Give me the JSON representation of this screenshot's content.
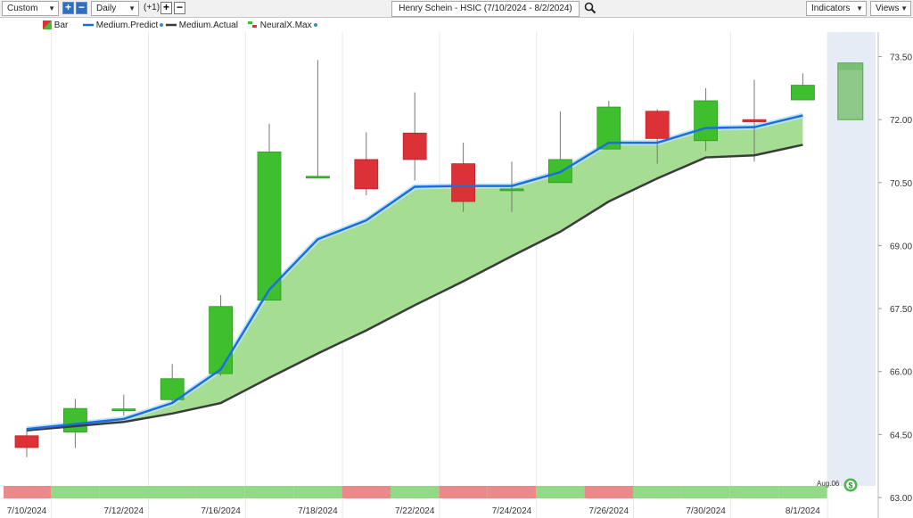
{
  "toolbar": {
    "range_select": "Custom",
    "interval_select": "Daily",
    "offset_text": "(+1)",
    "title": "Henry Schein - HSIC (7/10/2024 - 8/2/2024)",
    "indicators_label": "Indicators",
    "views_label": "Views"
  },
  "legend": {
    "bar": "Bar",
    "predict": "Medium.Predict",
    "actual": "Medium.Actual",
    "neuralx": "NeuralX.Max"
  },
  "colors": {
    "up": "#3fbf2e",
    "down": "#dc3137",
    "predict_line": "#1a6fe0",
    "actual_line": "#3b3b3b",
    "fill": "#a5dd92",
    "forecast_shade": "#e6ecf5",
    "strip_green": "#94d987",
    "strip_red": "#ea8a8a"
  },
  "chart_data": {
    "type": "candlestick",
    "ylim": [
      63.0,
      74.0
    ],
    "y_ticks": [
      63.0,
      64.5,
      66.0,
      67.5,
      69.0,
      70.5,
      72.0,
      73.5
    ],
    "y_tick_labels": [
      "63.00",
      "64.50",
      "66.00",
      "67.50",
      "69.00",
      "70.50",
      "72.00",
      "73.50"
    ],
    "x_labels": [
      "7/10/2024",
      "7/12/2024",
      "7/16/2024",
      "7/18/2024",
      "7/22/2024",
      "7/24/2024",
      "7/26/2024",
      "7/30/2024",
      "8/1/2024"
    ],
    "x_label_days": [
      0,
      2,
      4,
      6,
      8,
      10,
      12,
      14,
      16
    ],
    "candles": [
      {
        "o": 64.47,
        "h": 64.65,
        "l": 63.96,
        "c": 64.19
      },
      {
        "o": 64.56,
        "h": 65.35,
        "l": 64.18,
        "c": 65.12
      },
      {
        "o": 65.11,
        "h": 65.45,
        "l": 64.95,
        "c": 65.11
      },
      {
        "o": 65.33,
        "h": 66.18,
        "l": 65.24,
        "c": 65.83
      },
      {
        "o": 65.95,
        "h": 67.82,
        "l": 65.9,
        "c": 67.55
      },
      {
        "o": 67.7,
        "h": 71.9,
        "l": 67.7,
        "c": 71.23
      },
      {
        "o": 70.65,
        "h": 73.42,
        "l": 70.65,
        "c": 70.65
      },
      {
        "o": 71.05,
        "h": 71.7,
        "l": 70.2,
        "c": 70.35
      },
      {
        "o": 71.68,
        "h": 72.65,
        "l": 70.55,
        "c": 71.05
      },
      {
        "o": 70.95,
        "h": 71.45,
        "l": 69.8,
        "c": 70.05
      },
      {
        "o": 70.35,
        "h": 71.0,
        "l": 69.8,
        "c": 70.35
      },
      {
        "o": 70.5,
        "h": 72.2,
        "l": 70.5,
        "c": 71.05
      },
      {
        "o": 71.3,
        "h": 72.45,
        "l": 71.3,
        "c": 72.3
      },
      {
        "o": 72.2,
        "h": 72.25,
        "l": 70.95,
        "c": 71.55
      },
      {
        "o": 71.5,
        "h": 72.75,
        "l": 71.25,
        "c": 72.45
      },
      {
        "o": 72.0,
        "h": 72.95,
        "l": 71.0,
        "c": 71.95
      },
      {
        "o": 72.47,
        "h": 73.1,
        "l": 72.47,
        "c": 72.82
      }
    ],
    "series": [
      {
        "name": "Medium.Predict",
        "values": [
          64.63,
          64.75,
          64.87,
          65.25,
          66.05,
          67.95,
          69.15,
          69.6,
          70.4,
          70.42,
          70.42,
          70.75,
          71.45,
          71.45,
          71.8,
          71.82,
          72.1
        ]
      },
      {
        "name": "Medium.Actual",
        "values": [
          64.6,
          64.7,
          64.8,
          65.0,
          65.25,
          65.85,
          66.43,
          66.98,
          67.58,
          68.15,
          68.75,
          69.33,
          70.05,
          70.6,
          71.1,
          71.15,
          71.4
        ]
      }
    ],
    "forecast_box": {
      "low": 72.0,
      "high": 73.35
    },
    "flag_label": "Aug.06",
    "signal_strip": [
      "red",
      "green",
      "green",
      "green",
      "green",
      "green",
      "green",
      "red",
      "green",
      "red",
      "red",
      "green",
      "red",
      "green",
      "green",
      "green",
      "green"
    ]
  }
}
